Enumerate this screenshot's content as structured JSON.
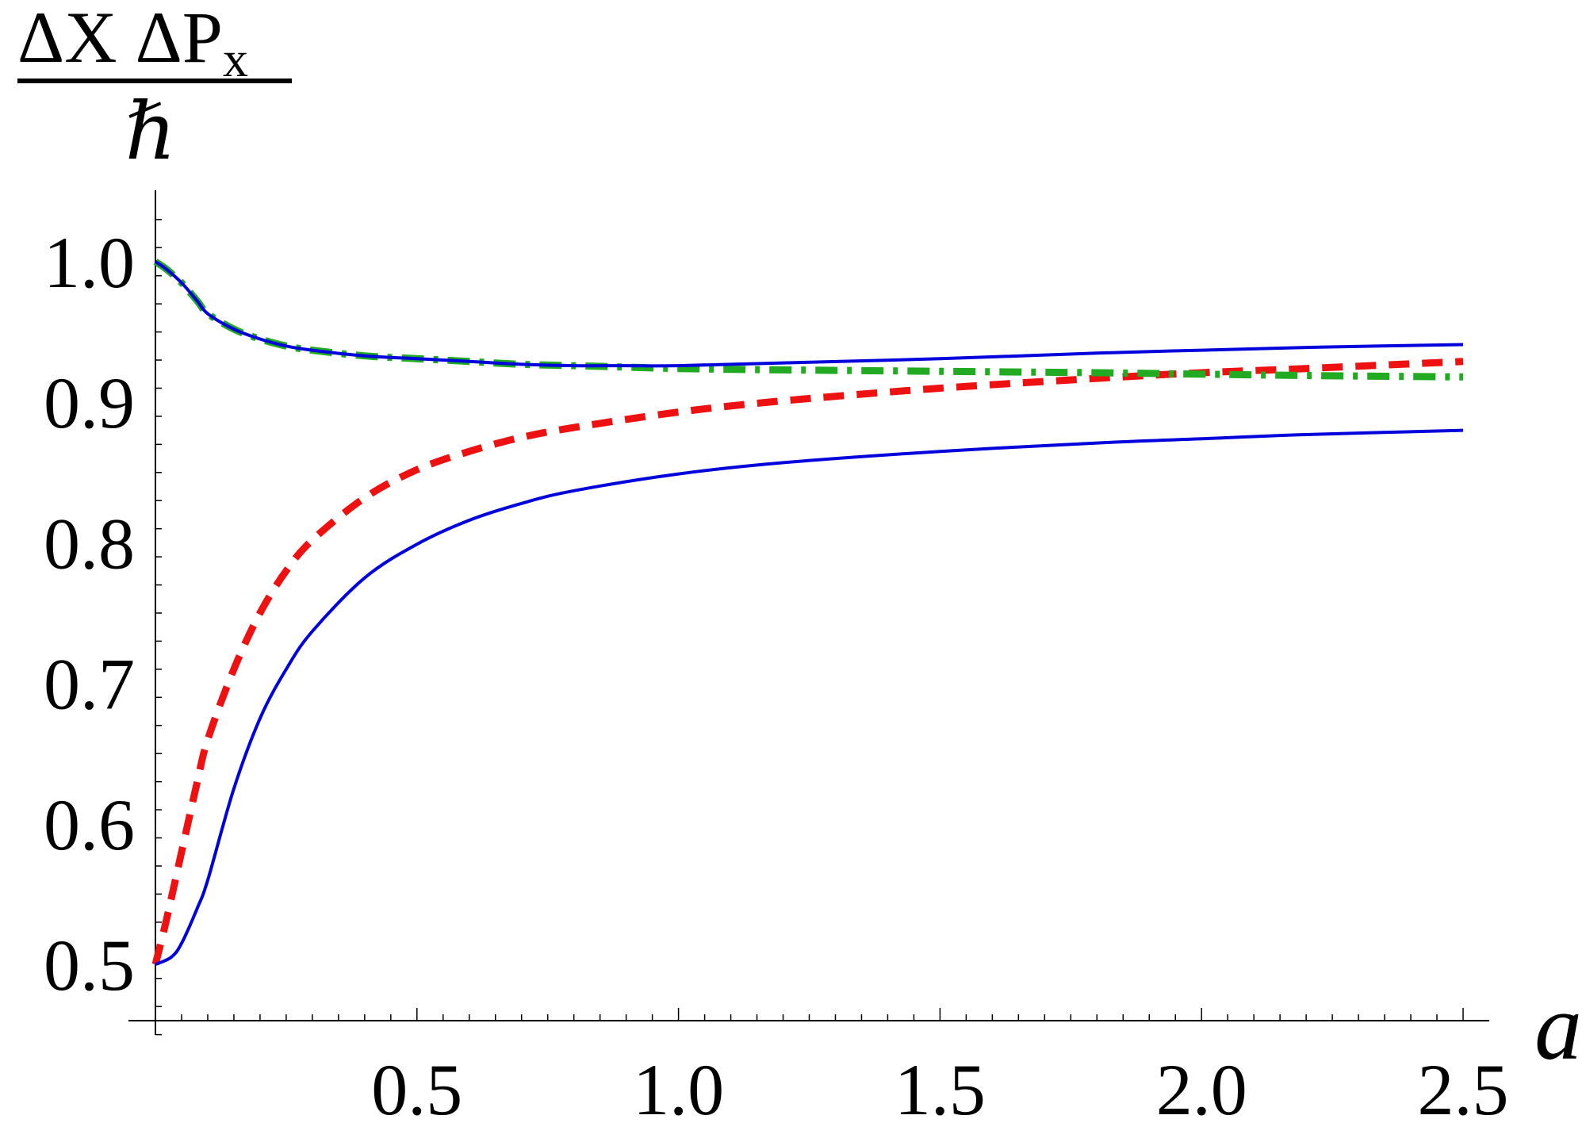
{
  "chart_data": {
    "type": "line",
    "title": "",
    "ylabel": {
      "numerator_part1": "ΔX ΔP",
      "numerator_subscript": "x",
      "denominator": "ℏ"
    },
    "xlabel": "a",
    "xlim": [
      0,
      2.55
    ],
    "ylim": [
      0.45,
      1.05
    ],
    "x_ticks": [
      "0.5",
      "1.0",
      "1.5",
      "2.0",
      "2.5"
    ],
    "x_tick_values": [
      0.5,
      1.0,
      1.5,
      2.0,
      2.5
    ],
    "y_ticks": [
      "0.5",
      "0.6",
      "0.7",
      "0.8",
      "0.9",
      "1.0"
    ],
    "y_tick_values": [
      0.5,
      0.6,
      0.7,
      0.8,
      0.9,
      1.0
    ],
    "grid": false,
    "legend": "none",
    "series": [
      {
        "color": "#0000dd",
        "style": "solid",
        "x": [
          0,
          0.02,
          0.05,
          0.08,
          0.1,
          0.15,
          0.2,
          0.25,
          0.3,
          0.4,
          0.5,
          0.6,
          0.7,
          0.8,
          0.9,
          1.0,
          1.2,
          1.5,
          1.8,
          2.0,
          2.2,
          2.5
        ],
        "y": [
          1.0,
          0.995,
          0.985,
          0.972,
          0.963,
          0.952,
          0.945,
          0.94,
          0.937,
          0.933,
          0.931,
          0.929,
          0.927,
          0.926,
          0.926,
          0.926,
          0.928,
          0.931,
          0.935,
          0.937,
          0.939,
          0.941
        ]
      },
      {
        "color": "#0000dd",
        "style": "solid",
        "x": [
          0,
          0.03,
          0.05,
          0.08,
          0.1,
          0.15,
          0.2,
          0.25,
          0.3,
          0.4,
          0.5,
          0.6,
          0.7,
          0.8,
          1.0,
          1.2,
          1.5,
          1.8,
          2.0,
          2.2,
          2.5
        ],
        "y": [
          0.5,
          0.505,
          0.515,
          0.54,
          0.56,
          0.625,
          0.675,
          0.71,
          0.737,
          0.775,
          0.799,
          0.816,
          0.828,
          0.837,
          0.849,
          0.857,
          0.865,
          0.871,
          0.874,
          0.877,
          0.88
        ]
      },
      {
        "color": "#ee1111",
        "style": "dashed",
        "x": [
          0,
          0.02,
          0.05,
          0.08,
          0.1,
          0.15,
          0.2,
          0.25,
          0.3,
          0.4,
          0.5,
          0.6,
          0.7,
          0.8,
          1.0,
          1.2,
          1.5,
          1.8,
          2.0,
          2.2,
          2.5
        ],
        "y": [
          0.5,
          0.53,
          0.58,
          0.63,
          0.66,
          0.71,
          0.75,
          0.78,
          0.802,
          0.832,
          0.852,
          0.865,
          0.875,
          0.882,
          0.893,
          0.901,
          0.91,
          0.917,
          0.921,
          0.924,
          0.929
        ]
      },
      {
        "color": "#22aa22",
        "style": "dash-dot",
        "x": [
          0,
          0.02,
          0.05,
          0.08,
          0.1,
          0.15,
          0.2,
          0.25,
          0.3,
          0.4,
          0.5,
          0.6,
          0.7,
          0.8,
          0.9,
          1.0,
          1.2,
          1.5,
          1.8,
          2.0,
          2.2,
          2.5
        ],
        "y": [
          1.0,
          0.995,
          0.985,
          0.972,
          0.963,
          0.952,
          0.945,
          0.94,
          0.937,
          0.933,
          0.931,
          0.929,
          0.927,
          0.926,
          0.925,
          0.924,
          0.923,
          0.922,
          0.921,
          0.92,
          0.919,
          0.918
        ]
      }
    ]
  }
}
